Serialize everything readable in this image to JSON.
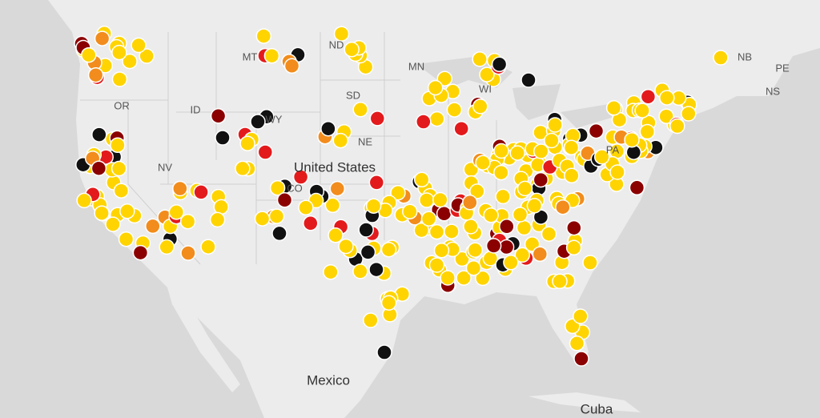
{
  "map": {
    "states": [
      "OR",
      "NV",
      "ID",
      "MT",
      "WY",
      "ND",
      "SD",
      "NE",
      "CO",
      "PA",
      "MN",
      "WI",
      "NB",
      "PE",
      "NS"
    ],
    "countries": [
      "United States",
      "Mexico",
      "Cuba"
    ]
  }
}
